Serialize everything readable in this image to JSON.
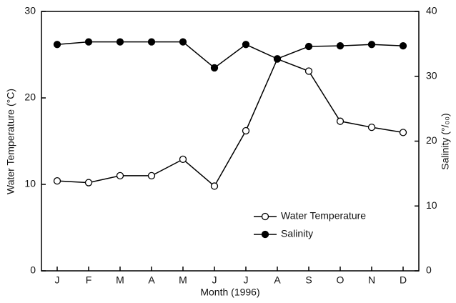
{
  "chart_data": {
    "type": "line",
    "xlabel": "Month (1996)",
    "ylabel": "Water Temperature (°C)",
    "y2label": "Salinity (°/₀₀)",
    "categories": [
      "J",
      "F",
      "M",
      "A",
      "M",
      "J",
      "J",
      "A",
      "S",
      "O",
      "N",
      "D"
    ],
    "series": [
      {
        "name": "Water Temperature",
        "color": "#000000",
        "marker": "open",
        "values": [
          10.4,
          10.2,
          11.0,
          11.0,
          12.9,
          9.8,
          16.2,
          24.5,
          23.1,
          17.3,
          16.6,
          16.0
        ]
      },
      {
        "name": "Salinity",
        "color": "#000000",
        "marker": "filled",
        "axis": "y2",
        "values": [
          34.9,
          35.3,
          35.3,
          35.3,
          35.3,
          31.3,
          34.9,
          32.7,
          34.6,
          34.7,
          34.9,
          34.7
        ]
      }
    ],
    "ylim": [
      0,
      30
    ],
    "yticks": [
      0,
      10,
      20,
      30
    ],
    "y2lim": [
      0,
      40
    ],
    "y2ticks": [
      0,
      10,
      20,
      30,
      40
    ],
    "grid": false
  }
}
